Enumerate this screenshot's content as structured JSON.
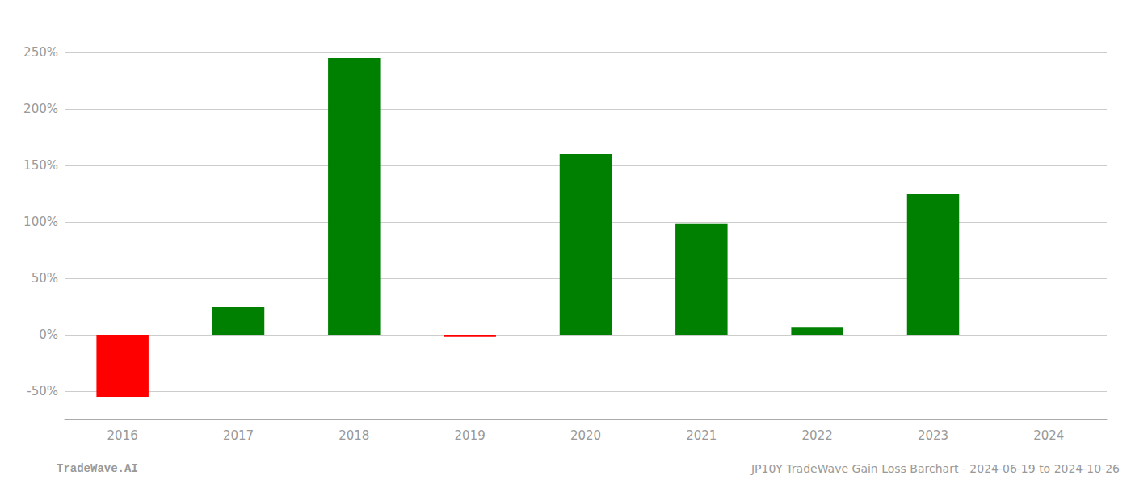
{
  "chart_data": {
    "type": "bar",
    "categories": [
      "2016",
      "2017",
      "2018",
      "2019",
      "2020",
      "2021",
      "2022",
      "2023",
      "2024"
    ],
    "values": [
      -55.0,
      25.0,
      245.0,
      -2.0,
      160.0,
      98.0,
      7.0,
      125.0,
      0.0
    ],
    "colors": [
      "#ff0000",
      "#008000",
      "#008000",
      "#ff0000",
      "#008000",
      "#008000",
      "#008000",
      "#008000",
      "#008000"
    ],
    "ylim": [
      -75,
      275
    ],
    "yticks": [
      {
        "value": -50,
        "label": "-50%"
      },
      {
        "value": 0,
        "label": "0%"
      },
      {
        "value": 50,
        "label": "50%"
      },
      {
        "value": 100,
        "label": "100%"
      },
      {
        "value": 150,
        "label": "150%"
      },
      {
        "value": 200,
        "label": "200%"
      },
      {
        "value": 250,
        "label": "250%"
      }
    ],
    "grid": true,
    "annotations": [
      "TradeWave.AI",
      "JP10Y TradeWave Gain Loss Barchart - 2024-06-19 to 2024-10-26"
    ]
  }
}
